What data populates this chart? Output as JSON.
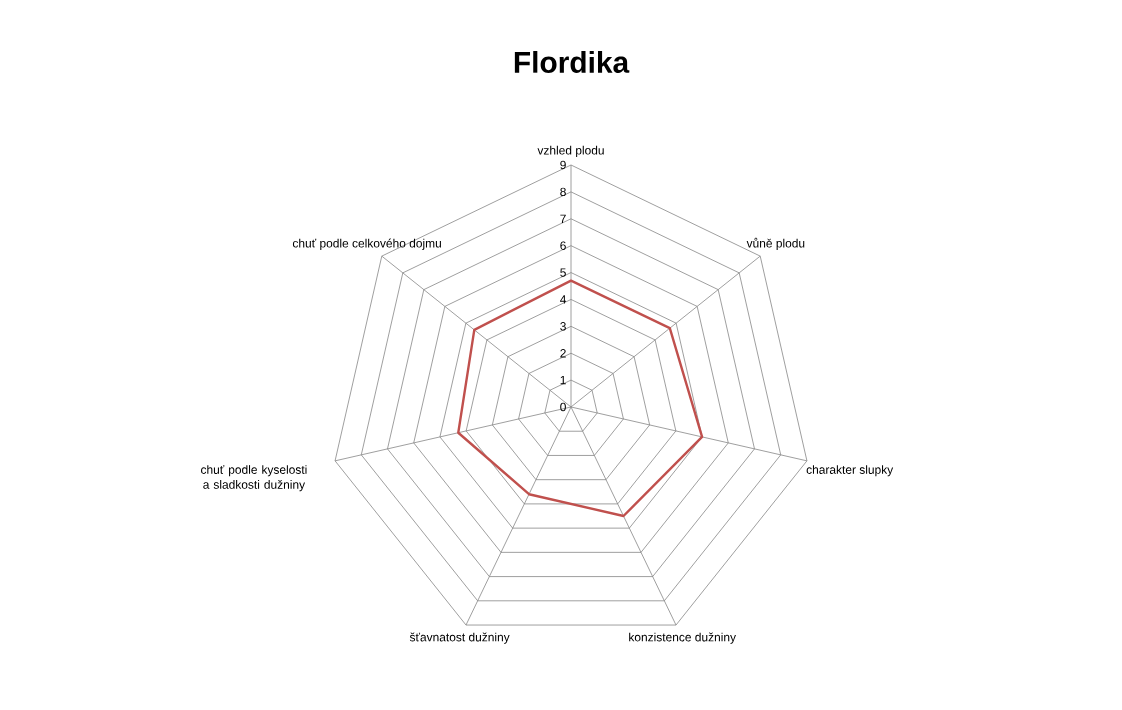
{
  "chart_data": {
    "type": "radar",
    "title": "Flordika",
    "categories": [
      "vzhled plodu",
      "vůně plodu",
      "charakter slupky",
      "konzistence dužniny",
      "šťavnatost dužniny",
      "chuť podle kyselosti a sladkosti dužniny",
      "chuť podle celkového dojmu"
    ],
    "series": [
      {
        "color": "#c0504d",
        "values": [
          4.7,
          4.7,
          5,
          4.5,
          3.6,
          4.3,
          4.6
        ]
      }
    ],
    "ylim": [
      0,
      9
    ],
    "yticks": [
      0,
      1,
      2,
      3,
      4,
      5,
      6,
      7,
      8,
      9
    ],
    "grid": true
  }
}
